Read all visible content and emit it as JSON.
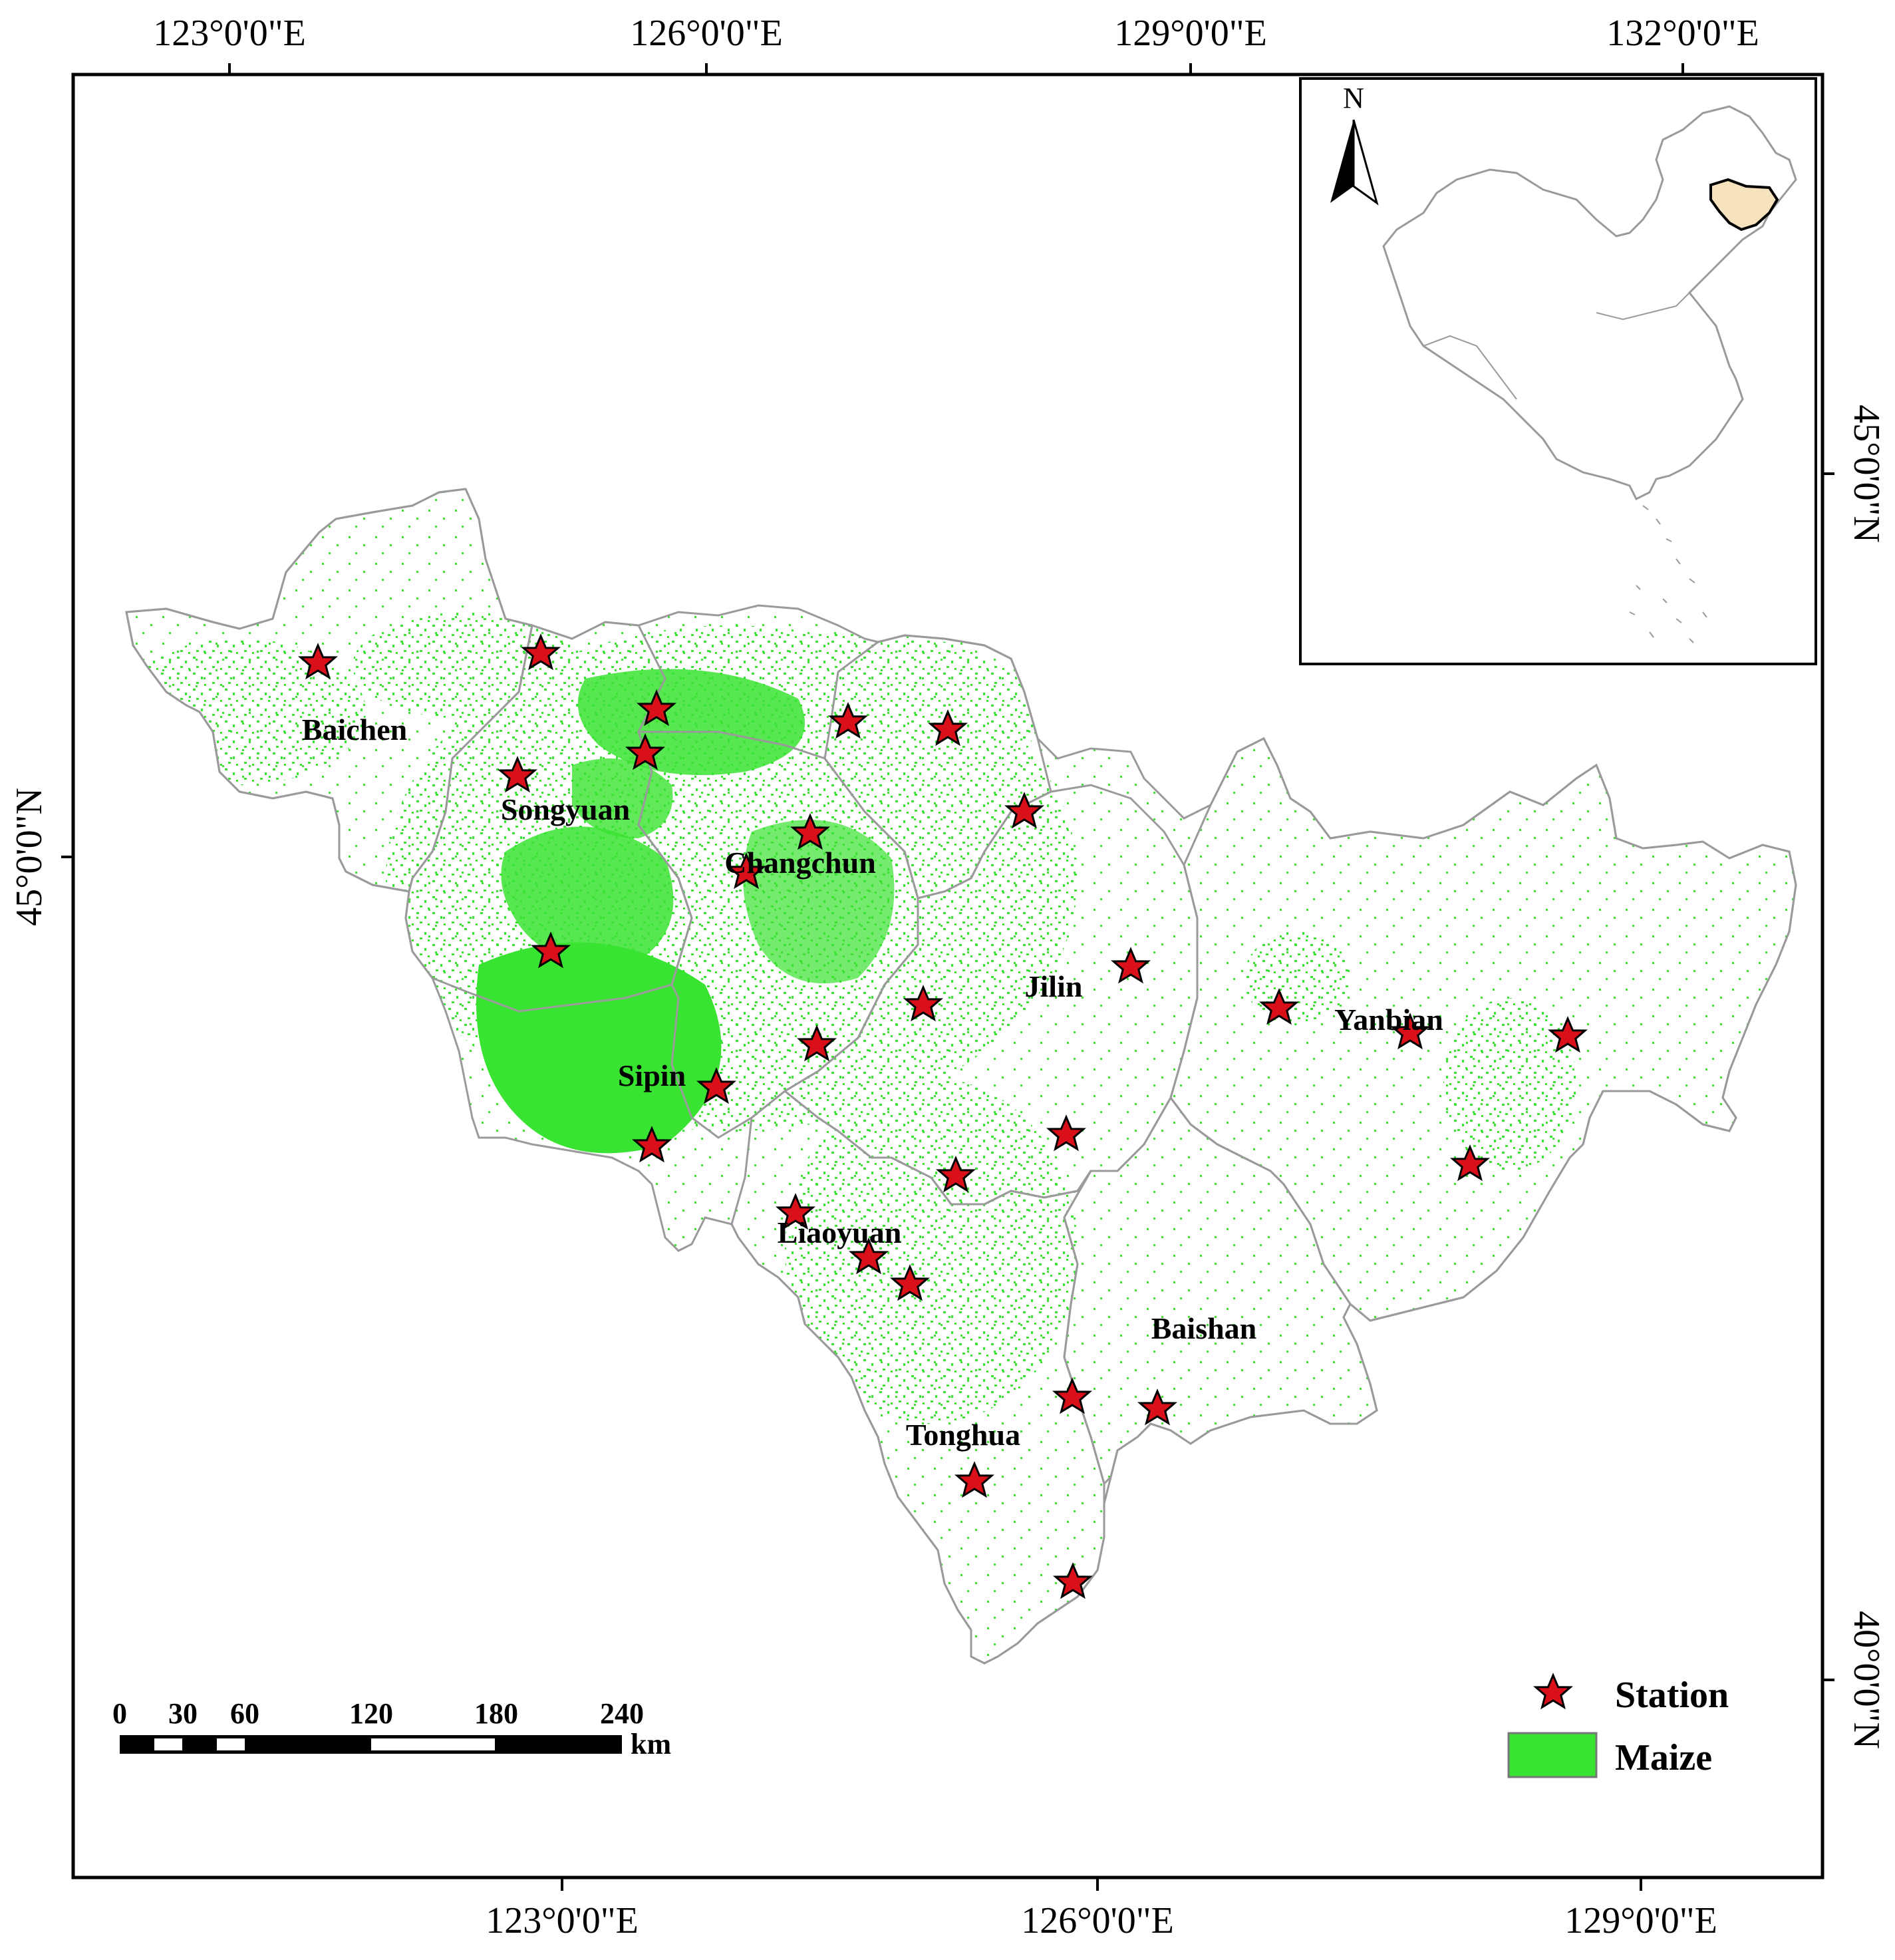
{
  "map": {
    "graticule": {
      "top_labels": [
        "123°0'0\"E",
        "126°0'0\"E",
        "129°0'0\"E",
        "132°0'0\"E"
      ],
      "bottom_labels": [
        "123°0'0\"E",
        "126°0'0\"E",
        "129°0'0\"E"
      ],
      "left_labels": [
        "45°0'0\"N"
      ],
      "right_labels": [
        "45°0'0\"N",
        "40°0'0\"N"
      ]
    },
    "cities": [
      {
        "name": "Baichen"
      },
      {
        "name": "Songyuan"
      },
      {
        "name": "Changchun"
      },
      {
        "name": "Jilin"
      },
      {
        "name": "Yanbian"
      },
      {
        "name": "Sipin"
      },
      {
        "name": "Liaoyuan"
      },
      {
        "name": "Baishan"
      },
      {
        "name": "Tonghua"
      }
    ],
    "station_count": 28,
    "inset": {
      "north_arrow_label": "N",
      "highlight_color": "#f6e2bd"
    },
    "scale_bar": {
      "ticks": [
        "0",
        "30",
        "60",
        "120",
        "180",
        "240"
      ],
      "unit": "km"
    },
    "legend": {
      "items": [
        {
          "label": "Station",
          "symbol": "star",
          "color": "#d9101a"
        },
        {
          "label": "Maize",
          "symbol": "patch",
          "color": "#39e331"
        }
      ]
    },
    "colors": {
      "maize": "#39e331",
      "station": "#d9101a",
      "boundary": "#9a9a9a"
    }
  }
}
